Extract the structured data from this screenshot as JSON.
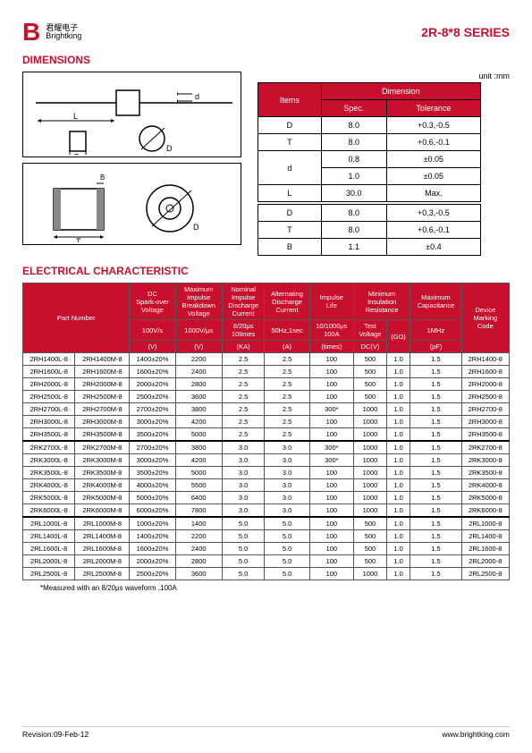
{
  "header": {
    "logo_cn": "君耀电子",
    "logo_en": "Brightking",
    "series": "2R-8*8 SERIES"
  },
  "sections": {
    "dimensions": "DIMENSIONS",
    "electrical": "ELECTRICAL CHARACTERISTIC"
  },
  "unit_label": "unit :mm",
  "dim_table": {
    "h_items": "Items",
    "h_dimension": "Dimension",
    "h_spec": "Spec.",
    "h_tol": "Tolerance",
    "rows1": [
      {
        "item": "D",
        "spec": "8.0",
        "tol": "+0.3,-0.5"
      },
      {
        "item": "T",
        "spec": "8.0",
        "tol": "+0.6,-0.1"
      },
      {
        "item": "d",
        "spec": "0.8",
        "tol": "±0.05"
      },
      {
        "item": "",
        "spec": "1.0",
        "tol": "±0.05"
      },
      {
        "item": "L",
        "spec": "30.0",
        "tol": "Max."
      }
    ],
    "rows2": [
      {
        "item": "D",
        "spec": "8.0",
        "tol": "+0.3,-0.5"
      },
      {
        "item": "T",
        "spec": "8.0",
        "tol": "+0.6,-0.1"
      },
      {
        "item": "B",
        "spec": "1.1",
        "tol": "±0.4"
      }
    ]
  },
  "elec": {
    "headers": {
      "part": "Part Number",
      "dcspark": "DC\nSpark-over\nVoltage",
      "maximp": "Maximum\nImpulse\nBreakdown\nVoltage",
      "nomimp": "Nominal\nImpulse\nDischarge\nCurrent",
      "altdis": "Alternating\nDischarge\nCurrent",
      "implife": "Impulse\nLife",
      "minins": "Minimum\nInsulation\nResistance",
      "maxcap": "Maximum\nCapacitance",
      "devcode": "Device\nMarking\nCode",
      "r2_100vs": "100V/s",
      "r2_1000vus": "1000V/μs",
      "r2_820": "8/20μs\n10times",
      "r2_50hz": "50Hz,1sec",
      "r2_101000": "10/1000μs\n100A",
      "r2_testv": "Test\nVoltage",
      "r2_gohm": "(GΩ)",
      "r2_1mhz": "1MHz",
      "r3_v": "(V)",
      "r3_v2": "(V)",
      "r3_ka": "(KA)",
      "r3_a": "(A)",
      "r3_times": "(times)",
      "r3_dcv": "DC(V)",
      "r3_pf": "(pF)"
    },
    "rows": [
      [
        "2RH1400L-8",
        "2RH1400M-8",
        "1400±20%",
        "2200",
        "2.5",
        "2.5",
        "100",
        "500",
        "1.0",
        "1.5",
        "2RH1400-8"
      ],
      [
        "2RH1600L-8",
        "2RH1600M-8",
        "1600±20%",
        "2400",
        "2.5",
        "2.5",
        "100",
        "500",
        "1.0",
        "1.5",
        "2RH1600-8"
      ],
      [
        "2RH2000L-8",
        "2RH2000M-8",
        "2000±20%",
        "2800",
        "2.5",
        "2.5",
        "100",
        "500",
        "1.0",
        "1.5",
        "2RH2000-8"
      ],
      [
        "2RH2500L-8",
        "2RH2500M-8",
        "2500±20%",
        "3600",
        "2.5",
        "2.5",
        "100",
        "500",
        "1.0",
        "1.5",
        "2RH2500-8"
      ],
      [
        "2RH2700L-8",
        "2RH2700M-8",
        "2700±20%",
        "3800",
        "2.5",
        "2.5",
        "300*",
        "1000",
        "1.0",
        "1.5",
        "2RH2700-8"
      ],
      [
        "2RH3000L-8",
        "2RH3000M-8",
        "3000±20%",
        "4200",
        "2.5",
        "2.5",
        "100",
        "1000",
        "1.0",
        "1.5",
        "2RH3000-8"
      ],
      [
        "2RH3500L-8",
        "2RH3500M-8",
        "3500±20%",
        "5000",
        "2.5",
        "2.5",
        "100",
        "1000",
        "1.0",
        "1.5",
        "2RH3500-8"
      ],
      [
        "2RK2700L-8",
        "2RK2700M-8",
        "2700±20%",
        "3800",
        "3.0",
        "3.0",
        "300*",
        "1000",
        "1.0",
        "1.5",
        "2RK2700-8"
      ],
      [
        "2RK3000L-8",
        "2RK3000M-8",
        "3000±20%",
        "4200",
        "3.0",
        "3.0",
        "300*",
        "1000",
        "1.0",
        "1.5",
        "2RK3000-8"
      ],
      [
        "2RK3500L-8",
        "2RK3500M-8",
        "3500±20%",
        "5000",
        "3.0",
        "3.0",
        "100",
        "1000",
        "1.0",
        "1.5",
        "2RK3500-8"
      ],
      [
        "2RK4000L-8",
        "2RK4000M-8",
        "4000±20%",
        "5500",
        "3.0",
        "3.0",
        "100",
        "1000",
        "1.0",
        "1.5",
        "2RK4000-8"
      ],
      [
        "2RK5000L-8",
        "2RK5000M-8",
        "5000±20%",
        "6400",
        "3.0",
        "3.0",
        "100",
        "1000",
        "1.0",
        "1.5",
        "2RK5000-8"
      ],
      [
        "2RK6000L-8",
        "2RK6000M-8",
        "6000±20%",
        "7800",
        "3.0",
        "3.0",
        "100",
        "1000",
        "1.0",
        "1.5",
        "2RK6000-8"
      ],
      [
        "2RL1000L-8",
        "2RL1000M-8",
        "1000±20%",
        "1400",
        "5.0",
        "5.0",
        "100",
        "500",
        "1.0",
        "1.5",
        "2RL1000-8"
      ],
      [
        "2RL1400L-8",
        "2RL1400M-8",
        "1400±20%",
        "2200",
        "5.0",
        "5.0",
        "100",
        "500",
        "1.0",
        "1.5",
        "2RL1400-8"
      ],
      [
        "2RL1600L-8",
        "2RL1600M-8",
        "1600±20%",
        "2400",
        "5.0",
        "5.0",
        "100",
        "500",
        "1.0",
        "1.5",
        "2RL1600-8"
      ],
      [
        "2RL2000L-8",
        "2RL2000M-8",
        "2000±20%",
        "2800",
        "5.0",
        "5.0",
        "100",
        "500",
        "1.0",
        "1.5",
        "2RL2000-8"
      ],
      [
        "2RL2500L-8",
        "2RL2500M-8",
        "2500±20%",
        "3600",
        "5.0",
        "5.0",
        "100",
        "1000",
        "1.0",
        "1.5",
        "2RL2500-8"
      ]
    ],
    "group_breaks": [
      7,
      13
    ]
  },
  "footnote": "*Measured with an 8/20μs waveform ,100A",
  "footer": {
    "revision": "Revision:09-Feb-12",
    "url": "www.brightking.com"
  },
  "colors": {
    "accent": "#c8102e"
  }
}
